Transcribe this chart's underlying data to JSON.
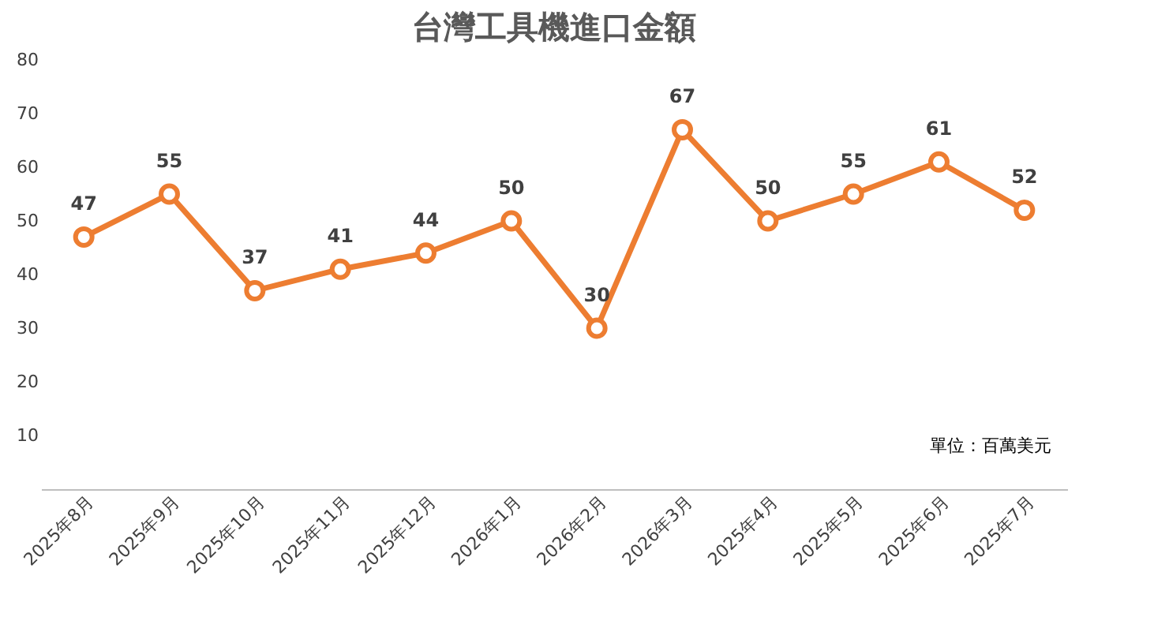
{
  "chart_data": {
    "type": "line",
    "title": "台灣工具機進口金額",
    "categories": [
      "2025年8月",
      "2025年9月",
      "2025年10月",
      "2025年11月",
      "2025年12月",
      "2026年1月",
      "2026年2月",
      "2026年3月",
      "2025年4月",
      "2025年5月",
      "2025年6月",
      "2025年7月"
    ],
    "series": [
      {
        "color": "#ed7d31",
        "values": [
          47,
          55,
          37,
          41,
          44,
          50,
          30,
          67,
          50,
          55,
          61,
          52
        ]
      }
    ],
    "ylim": [
      0,
      80
    ],
    "yticks": [
      10,
      20,
      30,
      40,
      50,
      60,
      70,
      80
    ],
    "grid": false,
    "legend": false,
    "marker": "circle",
    "line_style": "solid",
    "data_labels": true,
    "annotations": [
      "單位：百萬美元"
    ]
  }
}
